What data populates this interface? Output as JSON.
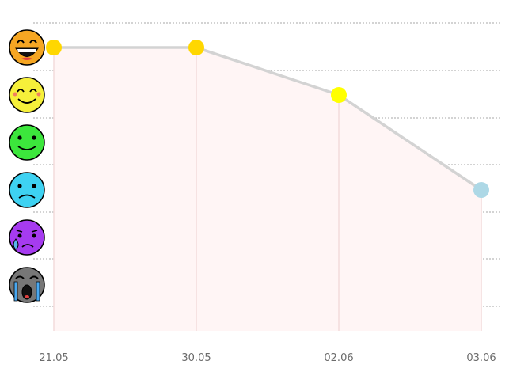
{
  "chart_data": {
    "type": "line",
    "title": "",
    "xlabel": "",
    "ylabel": "",
    "categories": [
      "21.05",
      "30.05",
      "02.06",
      "03.06"
    ],
    "values": [
      6,
      6,
      5,
      3
    ],
    "ylim": [
      0,
      6
    ],
    "y_levels": [
      {
        "level": 6,
        "icon": "grinning-face-icon"
      },
      {
        "level": 5,
        "icon": "smiling-face-icon"
      },
      {
        "level": 4,
        "icon": "slight-smile-face-icon"
      },
      {
        "level": 3,
        "icon": "frowning-face-icon"
      },
      {
        "level": 2,
        "icon": "sad-sweat-face-icon"
      },
      {
        "level": 1,
        "icon": "loudly-crying-face-icon"
      }
    ],
    "grid": true,
    "point_colors": [
      "#FFD700",
      "#FFD700",
      "#FFFF00",
      "#ADD8E6"
    ],
    "line_color": "#D3D3D3",
    "area_color": "#FFF5F5"
  }
}
